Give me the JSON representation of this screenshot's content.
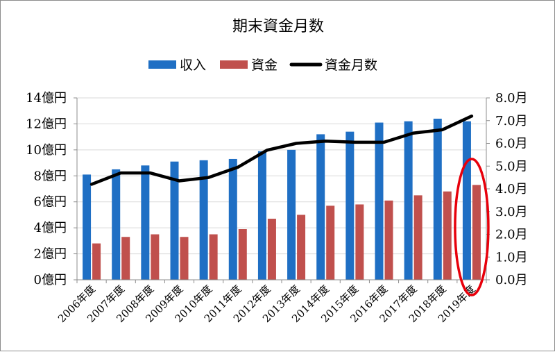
{
  "chart_data": {
    "type": "bar",
    "title": "期末資金月数",
    "categories": [
      "2006年度",
      "2007年度",
      "2008年度",
      "2009年度",
      "2010年度",
      "2011年度",
      "2012年度",
      "2013年度",
      "2014年度",
      "2015年度",
      "2016年度",
      "2017年度",
      "2018年度",
      "2019年度"
    ],
    "series": [
      {
        "name": "収入",
        "type": "bar",
        "axis": "left",
        "color": "#1f6fc4",
        "values": [
          8.1,
          8.5,
          8.8,
          9.1,
          9.2,
          9.3,
          9.9,
          10.0,
          11.2,
          11.4,
          12.1,
          12.2,
          12.4,
          12.2
        ]
      },
      {
        "name": "資金",
        "type": "bar",
        "axis": "left",
        "color": "#c0504d",
        "values": [
          2.8,
          3.3,
          3.5,
          3.3,
          3.5,
          3.9,
          4.7,
          5.0,
          5.7,
          5.8,
          6.1,
          6.5,
          6.8,
          7.3
        ]
      },
      {
        "name": "資金月数",
        "type": "line",
        "axis": "right",
        "color": "#000000",
        "values": [
          4.2,
          4.7,
          4.7,
          4.35,
          4.5,
          4.95,
          5.7,
          6.0,
          6.1,
          6.05,
          6.05,
          6.45,
          6.6,
          7.2
        ]
      }
    ],
    "y_left": {
      "ylim": [
        0,
        14
      ],
      "ticks": [
        "0億円",
        "2億円",
        "4億円",
        "6億円",
        "8億円",
        "10億円",
        "12億円",
        "14億円"
      ]
    },
    "y_right": {
      "ylim": [
        0,
        8
      ],
      "ticks": [
        "0.0月",
        "1.0月",
        "2.0月",
        "3.0月",
        "4.0月",
        "5.0月",
        "6.0月",
        "7.0月",
        "8.0月"
      ]
    },
    "legend_position": "top",
    "grid": "horizontal",
    "highlight": {
      "category": "2019年度",
      "shape": "ellipse",
      "color": "#e8000b"
    }
  }
}
